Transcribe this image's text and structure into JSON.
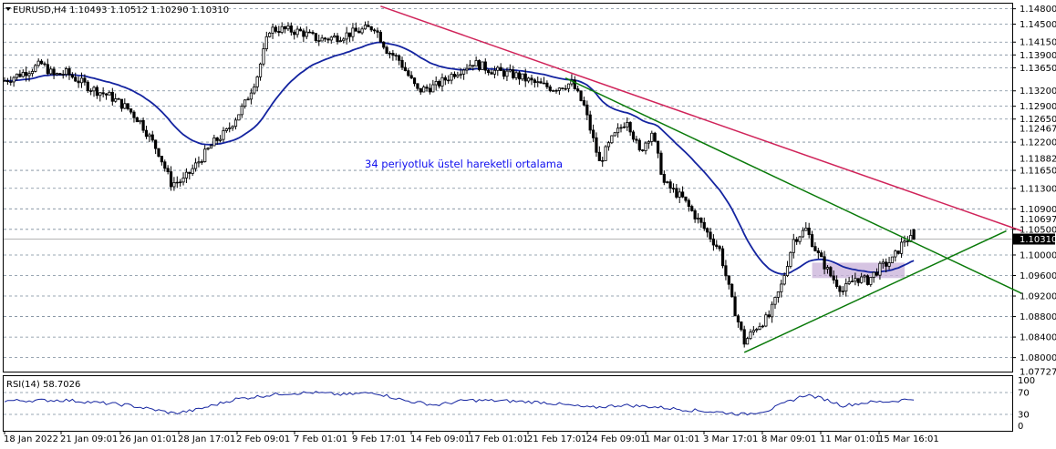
{
  "chart_data": [
    {
      "type": "candlestick",
      "title": "EURUSD,H4  1.10493 1.10512 1.10290 1.10310",
      "symbol": "EURUSD,H4",
      "ohlc": {
        "open": "1.10493",
        "high": "1.10512",
        "low": "1.10290",
        "close": "1.10310"
      },
      "annotation": "34 periyotluk üstel hareketli ortalama",
      "price_labels": [
        {
          "text": "1.14800",
          "value": 1.148,
          "boxed": true
        },
        {
          "text": "1.14500",
          "value": 1.145,
          "boxed": true
        },
        {
          "text": "1.14150",
          "value": 1.1415,
          "boxed": true
        },
        {
          "text": "1.13900",
          "value": 1.139,
          "boxed": true
        },
        {
          "text": "1.13650",
          "value": 1.1365,
          "boxed": true
        },
        {
          "text": "1.13200",
          "value": 1.132,
          "boxed": true
        },
        {
          "text": "1.12900",
          "value": 1.129,
          "boxed": true
        },
        {
          "text": "1.12650",
          "value": 1.1265,
          "boxed": true
        },
        {
          "text": "1.12467",
          "value": 1.12467,
          "boxed": false
        },
        {
          "text": "1.12200",
          "value": 1.122,
          "boxed": true
        },
        {
          "text": "1.11882",
          "value": 1.11882,
          "boxed": false
        },
        {
          "text": "1.11650",
          "value": 1.1165,
          "boxed": true
        },
        {
          "text": "1.11300",
          "value": 1.113,
          "boxed": true
        },
        {
          "text": "1.10900",
          "value": 1.109,
          "boxed": true
        },
        {
          "text": "1.10697",
          "value": 1.10697,
          "boxed": false
        },
        {
          "text": "1.10500",
          "value": 1.105,
          "boxed": true
        },
        {
          "text": "1.10000",
          "value": 1.1,
          "boxed": true
        },
        {
          "text": "1.09600",
          "value": 1.096,
          "boxed": true
        },
        {
          "text": "1.09200",
          "value": 1.092,
          "boxed": true
        },
        {
          "text": "1.08800",
          "value": 1.088,
          "boxed": true
        },
        {
          "text": "1.08400",
          "value": 1.084,
          "boxed": true
        },
        {
          "text": "1.08000",
          "value": 1.08,
          "boxed": true
        },
        {
          "text": "1.07727",
          "value": 1.07727,
          "boxed": false
        }
      ],
      "current_price": {
        "text": "1.10310",
        "value": 1.1031
      },
      "ylim": [
        1.07727,
        1.149
      ],
      "x_labels": [
        "18 Jan 2022",
        "21 Jan 09:01",
        "26 Jan 01:01",
        "28 Jan 17:01",
        "2 Feb 09:01",
        "7 Feb 01:01",
        "9 Feb 17:01",
        "14 Feb 09:01",
        "17 Feb 01:01",
        "21 Feb 17:01",
        "24 Feb 09:01",
        "1 Mar 01:01",
        "3 Mar 17:01",
        "8 Mar 09:01",
        "11 Mar 01:01",
        "15 Mar 16:01"
      ],
      "bar_count": 296,
      "close_anchors": [
        {
          "bar": 0,
          "close": 1.134
        },
        {
          "bar": 6,
          "close": 1.1355
        },
        {
          "bar": 12,
          "close": 1.1372
        },
        {
          "bar": 16,
          "close": 1.135
        },
        {
          "bar": 20,
          "close": 1.1355
        },
        {
          "bar": 28,
          "close": 1.1325
        },
        {
          "bar": 34,
          "close": 1.131
        },
        {
          "bar": 40,
          "close": 1.1285
        },
        {
          "bar": 44,
          "close": 1.126
        },
        {
          "bar": 50,
          "close": 1.12
        },
        {
          "bar": 54,
          "close": 1.114
        },
        {
          "bar": 58,
          "close": 1.1145
        },
        {
          "bar": 62,
          "close": 1.1175
        },
        {
          "bar": 68,
          "close": 1.122
        },
        {
          "bar": 72,
          "close": 1.124
        },
        {
          "bar": 78,
          "close": 1.1295
        },
        {
          "bar": 82,
          "close": 1.135
        },
        {
          "bar": 86,
          "close": 1.144
        },
        {
          "bar": 90,
          "close": 1.144
        },
        {
          "bar": 96,
          "close": 1.1435
        },
        {
          "bar": 102,
          "close": 1.142
        },
        {
          "bar": 108,
          "close": 1.1425
        },
        {
          "bar": 114,
          "close": 1.1435
        },
        {
          "bar": 120,
          "close": 1.1445
        },
        {
          "bar": 124,
          "close": 1.14
        },
        {
          "bar": 128,
          "close": 1.138
        },
        {
          "bar": 134,
          "close": 1.132
        },
        {
          "bar": 140,
          "close": 1.133
        },
        {
          "bar": 146,
          "close": 1.1355
        },
        {
          "bar": 152,
          "close": 1.1375
        },
        {
          "bar": 158,
          "close": 1.136
        },
        {
          "bar": 166,
          "close": 1.135
        },
        {
          "bar": 172,
          "close": 1.1335
        },
        {
          "bar": 178,
          "close": 1.1325
        },
        {
          "bar": 184,
          "close": 1.1335
        },
        {
          "bar": 188,
          "close": 1.129
        },
        {
          "bar": 193,
          "close": 1.118
        },
        {
          "bar": 197,
          "close": 1.1225
        },
        {
          "bar": 202,
          "close": 1.1265
        },
        {
          "bar": 206,
          "close": 1.12
        },
        {
          "bar": 210,
          "close": 1.124
        },
        {
          "bar": 214,
          "close": 1.114
        },
        {
          "bar": 220,
          "close": 1.111
        },
        {
          "bar": 226,
          "close": 1.106
        },
        {
          "bar": 232,
          "close": 1.101
        },
        {
          "bar": 236,
          "close": 1.091
        },
        {
          "bar": 240,
          "close": 1.083
        },
        {
          "bar": 244,
          "close": 1.086
        },
        {
          "bar": 248,
          "close": 1.088
        },
        {
          "bar": 252,
          "close": 1.094
        },
        {
          "bar": 256,
          "close": 1.103
        },
        {
          "bar": 260,
          "close": 1.105
        },
        {
          "bar": 264,
          "close": 1.1
        },
        {
          "bar": 268,
          "close": 1.096
        },
        {
          "bar": 272,
          "close": 1.093
        },
        {
          "bar": 276,
          "close": 1.0955
        },
        {
          "bar": 280,
          "close": 1.095
        },
        {
          "bar": 284,
          "close": 1.0975
        },
        {
          "bar": 288,
          "close": 1.099
        },
        {
          "bar": 292,
          "close": 1.103
        },
        {
          "bar": 295,
          "close": 1.1031
        }
      ],
      "ema_period": 34,
      "trendlines": [
        {
          "name": "upper-resistance",
          "color": "#d0245a",
          "from": {
            "bar": 122,
            "price": 1.1485
          },
          "to": {
            "bar": 330,
            "price": 1.1047
          }
        },
        {
          "name": "descending-channel",
          "color": "#0a7a0a",
          "from": {
            "bar": 182,
            "price": 1.1345
          },
          "to": {
            "bar": 330,
            "price": 1.0925
          }
        },
        {
          "name": "ascending-support",
          "color": "#0a7a0a",
          "from": {
            "bar": 240,
            "price": 1.081
          },
          "to": {
            "bar": 325,
            "price": 1.1047
          }
        }
      ],
      "range_box": {
        "from_bar": 262,
        "to_bar": 292,
        "top": 1.0985,
        "bottom": 1.0955,
        "color": "#c8b0d8"
      },
      "colors": {
        "ema": "#1424a0",
        "candle": "#000000",
        "grid": "#7a8a9a",
        "rsi": "#1424a0"
      }
    },
    {
      "type": "line",
      "title": "RSI(14) 58.7026",
      "value_label": "58.7026",
      "ylim": [
        0,
        100
      ],
      "levels": [
        {
          "text": "100",
          "value": 100
        },
        {
          "text": "70",
          "value": 70
        },
        {
          "text": "30",
          "value": 30
        },
        {
          "text": "0",
          "value": 0
        }
      ],
      "anchors": [
        {
          "bar": 0,
          "value": 55
        },
        {
          "bar": 20,
          "value": 56
        },
        {
          "bar": 40,
          "value": 47
        },
        {
          "bar": 55,
          "value": 32
        },
        {
          "bar": 62,
          "value": 38
        },
        {
          "bar": 75,
          "value": 58
        },
        {
          "bar": 90,
          "value": 68
        },
        {
          "bar": 100,
          "value": 70
        },
        {
          "bar": 110,
          "value": 66
        },
        {
          "bar": 120,
          "value": 70
        },
        {
          "bar": 130,
          "value": 55
        },
        {
          "bar": 140,
          "value": 47
        },
        {
          "bar": 150,
          "value": 56
        },
        {
          "bar": 160,
          "value": 55
        },
        {
          "bar": 175,
          "value": 52
        },
        {
          "bar": 190,
          "value": 42
        },
        {
          "bar": 200,
          "value": 47
        },
        {
          "bar": 210,
          "value": 44
        },
        {
          "bar": 222,
          "value": 38
        },
        {
          "bar": 232,
          "value": 34
        },
        {
          "bar": 240,
          "value": 30
        },
        {
          "bar": 248,
          "value": 38
        },
        {
          "bar": 255,
          "value": 55
        },
        {
          "bar": 260,
          "value": 66
        },
        {
          "bar": 266,
          "value": 58
        },
        {
          "bar": 272,
          "value": 46
        },
        {
          "bar": 280,
          "value": 52
        },
        {
          "bar": 288,
          "value": 54
        },
        {
          "bar": 295,
          "value": 59
        }
      ]
    }
  ]
}
